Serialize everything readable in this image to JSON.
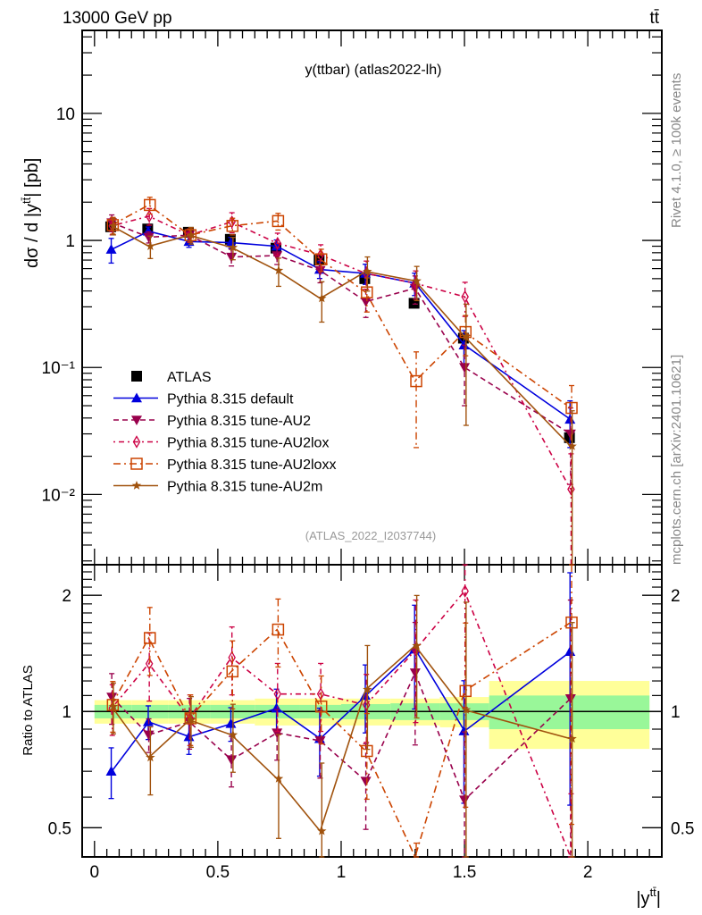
{
  "header": {
    "left_label": "13000 GeV pp",
    "right_label": "tt̄"
  },
  "side_labels": {
    "rivet": "Rivet 4.1.0, ≥ 100k events",
    "mcplots": "mcplots.cern.ch [arXiv:2401.10621]"
  },
  "chart_data": [
    {
      "type": "line",
      "title": "y(ttbar) (atlas2022-lh)",
      "watermark": "(ATLAS_2022_I2037744)",
      "ylabel": "dσ / d |y^{tt̄}| [pb]",
      "xlabel": "|y^{tt̄}|",
      "yscale": "log",
      "ylim": [
        0.0028,
        45
      ],
      "xlim": [
        -0.05,
        2.3
      ],
      "yticks": [
        {
          "value": 10,
          "label": "10"
        },
        {
          "value": 1,
          "label": "1"
        },
        {
          "value": 0.1,
          "label": "10⁻¹"
        },
        {
          "value": 0.01,
          "label": "10⁻²"
        }
      ],
      "legend_position": "bottom-left",
      "x": [
        0.07,
        0.22,
        0.385,
        0.555,
        0.74,
        0.915,
        1.1,
        1.3,
        1.5,
        1.93
      ],
      "series": [
        {
          "name": "ATLAS",
          "color": "#000000",
          "marker": "square",
          "dash": "none",
          "line": false,
          "values": [
            1.28,
            1.23,
            1.16,
            1.02,
            0.87,
            0.7,
            0.5,
            0.32,
            0.17,
            0.028
          ],
          "err": [
            0.05,
            0.05,
            0.05,
            0.05,
            0.05,
            0.05,
            0.05,
            0.05,
            0.06,
            0.08
          ]
        },
        {
          "name": "Pythia 8.315 default",
          "color": "#0000dd",
          "marker": "triangle-up",
          "dash": "none",
          "line": true,
          "values": [
            0.85,
            1.18,
            0.98,
            0.96,
            0.9,
            0.59,
            0.55,
            0.46,
            0.15,
            0.039
          ],
          "err": [
            0.22,
            0.08,
            0.1,
            0.1,
            0.12,
            0.15,
            0.18,
            0.2,
            0.3,
            0.4
          ]
        },
        {
          "name": "Pythia 8.315 tune-AU2",
          "color": "#99004c",
          "marker": "triangle-down",
          "dash": "6,4",
          "line": true,
          "values": [
            1.38,
            1.06,
            1.1,
            0.74,
            0.76,
            0.58,
            0.33,
            0.42,
            0.1,
            0.03
          ],
          "err": [
            0.15,
            0.1,
            0.12,
            0.15,
            0.15,
            0.2,
            0.25,
            0.25,
            0.5,
            0.6
          ]
        },
        {
          "name": "Pythia 8.315 tune-AU2lox",
          "color": "#cc0044",
          "marker": "diamond",
          "dash": "2,4,6,4",
          "line": true,
          "values": [
            1.3,
            1.55,
            1.1,
            1.4,
            0.95,
            0.77,
            0.55,
            0.46,
            0.36,
            0.011
          ],
          "err": [
            0.15,
            0.15,
            0.12,
            0.18,
            0.2,
            0.2,
            0.25,
            0.25,
            0.3,
            0.9
          ]
        },
        {
          "name": "Pythia 8.315 tune-AU2loxx",
          "color": "#cc4400",
          "marker": "square-open",
          "dash": "8,4,2,4",
          "line": true,
          "values": [
            1.32,
            1.9,
            1.1,
            1.3,
            1.42,
            0.71,
            0.39,
            0.078,
            0.19,
            0.048
          ],
          "err": [
            0.15,
            0.15,
            0.12,
            0.15,
            0.15,
            0.2,
            0.3,
            0.7,
            0.35,
            0.5
          ]
        },
        {
          "name": "Pythia 8.315 tune-AU2m",
          "color": "#a0520d",
          "marker": "star",
          "dash": "none",
          "line": true,
          "values": [
            1.3,
            0.9,
            1.1,
            0.88,
            0.58,
            0.35,
            0.57,
            0.48,
            0.175,
            0.024
          ],
          "err": [
            0.15,
            0.2,
            0.15,
            0.2,
            0.25,
            0.35,
            0.3,
            0.3,
            0.8,
            0.9
          ]
        }
      ]
    },
    {
      "type": "line",
      "title": "",
      "ylabel": "Ratio to ATLAS",
      "xlabel": "|y^{tt̄}|",
      "yscale": "log",
      "ylim": [
        0.42,
        2.4
      ],
      "xlim": [
        -0.05,
        2.3
      ],
      "yticks": [
        {
          "value": 2,
          "label": "2"
        },
        {
          "value": 1,
          "label": "1"
        },
        {
          "value": 0.5,
          "label": "0.5"
        }
      ],
      "xticks": [
        {
          "value": 0,
          "label": "0"
        },
        {
          "value": 0.5,
          "label": "0.5"
        },
        {
          "value": 1,
          "label": "1"
        },
        {
          "value": 1.5,
          "label": "1.5"
        },
        {
          "value": 2,
          "label": "2"
        }
      ],
      "bands": {
        "edges": [
          0,
          0.15,
          0.3,
          0.47,
          0.65,
          0.83,
          1.0,
          1.2,
          1.4,
          1.6,
          2.25
        ],
        "stat_half": [
          0.04,
          0.04,
          0.04,
          0.04,
          0.04,
          0.04,
          0.045,
          0.05,
          0.05,
          0.1
        ],
        "total_half": [
          0.07,
          0.07,
          0.07,
          0.07,
          0.08,
          0.08,
          0.08,
          0.08,
          0.09,
          0.2
        ],
        "stat_color": "#99f799",
        "total_color": "#ffff99"
      },
      "x": [
        0.07,
        0.22,
        0.385,
        0.555,
        0.74,
        0.915,
        1.1,
        1.3,
        1.5,
        1.93
      ],
      "series": [
        {
          "name": "Pythia 8.315 default",
          "values": [
            0.7,
            0.94,
            0.86,
            0.93,
            1.02,
            0.85,
            1.1,
            1.45,
            0.89,
            1.43
          ],
          "err": [
            0.15,
            0.1,
            0.1,
            0.1,
            0.12,
            0.2,
            0.2,
            0.3,
            0.35,
            0.6
          ]
        },
        {
          "name": "Pythia 8.315 tune-AU2",
          "values": [
            1.09,
            0.87,
            0.94,
            0.75,
            0.88,
            0.84,
            0.66,
            1.26,
            0.59,
            1.08
          ],
          "err": [
            0.15,
            0.1,
            0.15,
            0.15,
            0.15,
            0.2,
            0.25,
            0.35,
            0.5,
            0.8
          ]
        },
        {
          "name": "Pythia 8.315 tune-AU2lox",
          "values": [
            1.02,
            1.33,
            0.96,
            1.38,
            1.11,
            1.11,
            1.04,
            1.44,
            2.05,
            0.36
          ],
          "err": [
            0.15,
            0.2,
            0.15,
            0.2,
            0.2,
            0.2,
            0.2,
            0.35,
            0.5,
            0.7
          ]
        },
        {
          "name": "Pythia 8.315 tune-AU2loxx",
          "values": [
            1.04,
            1.55,
            0.96,
            1.27,
            1.63,
            1.03,
            0.79,
            0.24,
            1.13,
            1.7
          ],
          "err": [
            0.15,
            0.2,
            0.15,
            0.2,
            0.2,
            0.2,
            0.25,
            0.9,
            0.5,
            0.7
          ]
        },
        {
          "name": "Pythia 8.315 tune-AU2m",
          "values": [
            1.03,
            0.76,
            0.95,
            0.87,
            0.67,
            0.49,
            1.14,
            1.48,
            1.01,
            0.85
          ],
          "err": [
            0.15,
            0.2,
            0.15,
            0.2,
            0.3,
            0.5,
            0.3,
            0.35,
            0.9,
            1.0
          ]
        }
      ]
    }
  ]
}
